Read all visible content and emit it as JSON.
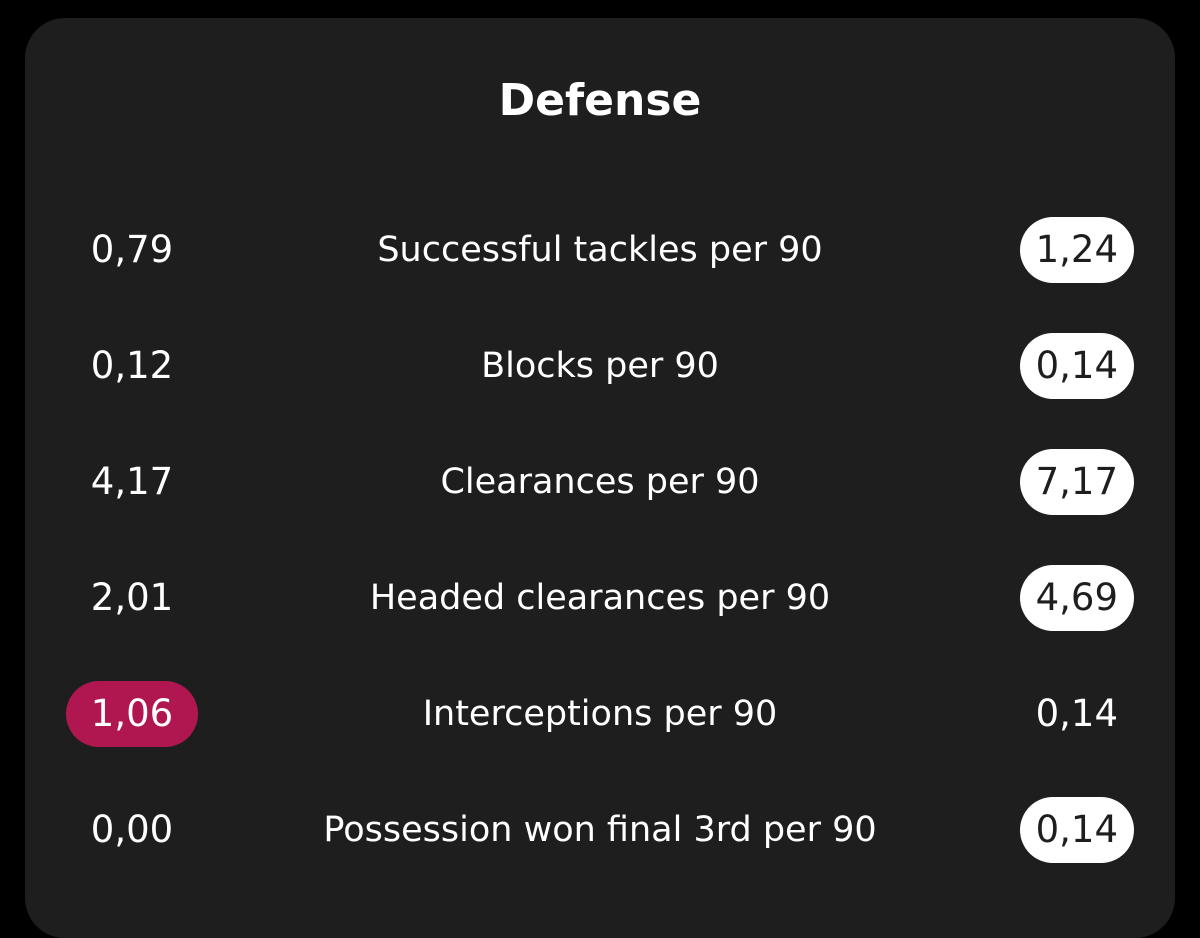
{
  "section": {
    "title": "Defense"
  },
  "colors": {
    "card_background": "#1e1e1e",
    "left_highlight": "#b0164f",
    "right_highlight": "#ffffff",
    "text": "#ffffff"
  },
  "stats": [
    {
      "label": "Successful tackles per 90",
      "left": "0,79",
      "right": "1,24",
      "better": "right"
    },
    {
      "label": "Blocks per 90",
      "left": "0,12",
      "right": "0,14",
      "better": "right"
    },
    {
      "label": "Clearances per 90",
      "left": "4,17",
      "right": "7,17",
      "better": "right"
    },
    {
      "label": "Headed clearances per 90",
      "left": "2,01",
      "right": "4,69",
      "better": "right"
    },
    {
      "label": "Interceptions per 90",
      "left": "1,06",
      "right": "0,14",
      "better": "left"
    },
    {
      "label": "Possession won final 3rd per 90",
      "left": "0,00",
      "right": "0,14",
      "better": "right"
    }
  ]
}
